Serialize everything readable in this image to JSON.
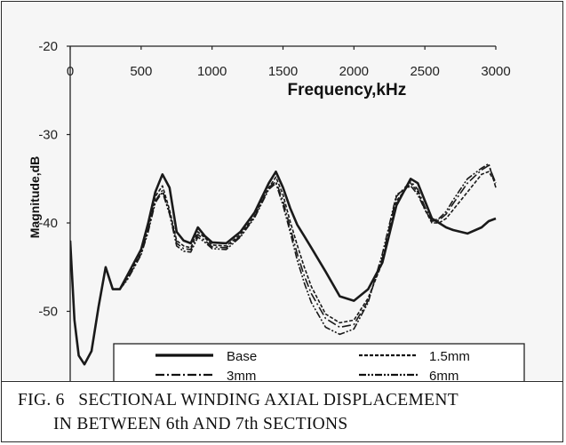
{
  "chart_data": {
    "type": "line",
    "xlabel": "Frequency,kHz",
    "ylabel": "Magnitude,dB",
    "xlim": [
      0,
      3000
    ],
    "ylim": [
      -60,
      -20
    ],
    "x_ticks": [
      "0",
      "500",
      "1000",
      "1500",
      "2000",
      "2500",
      "3000"
    ],
    "y_ticks": [
      "-20",
      "-30",
      "-40",
      "-50"
    ],
    "x_axis_position": "top",
    "grid": false,
    "legend_position": "bottom-center",
    "series": [
      {
        "name": "Base",
        "style": "solid-thick",
        "x": [
          0,
          30,
          60,
          100,
          150,
          200,
          250,
          300,
          350,
          400,
          450,
          500,
          550,
          600,
          650,
          700,
          750,
          800,
          850,
          900,
          950,
          1000,
          1100,
          1200,
          1300,
          1400,
          1450,
          1500,
          1550,
          1600,
          1650,
          1700,
          1800,
          1900,
          2000,
          2100,
          2200,
          2300,
          2400,
          2450,
          2500,
          2550,
          2600,
          2650,
          2700,
          2800,
          2900,
          2950,
          3000
        ],
        "y": [
          -42,
          -51,
          -55,
          -56,
          -54.5,
          -49.5,
          -45,
          -47.5,
          -47.5,
          -46,
          -44.5,
          -43,
          -40,
          -36.5,
          -34.5,
          -36,
          -41,
          -42,
          -42.3,
          -40.5,
          -41.5,
          -42.2,
          -42.3,
          -41,
          -38.8,
          -35.5,
          -34.2,
          -36,
          -38.3,
          -40.2,
          -41.5,
          -42.8,
          -45.5,
          -48.3,
          -48.8,
          -47.5,
          -44.5,
          -38,
          -35,
          -35.5,
          -37.5,
          -39.5,
          -40,
          -40.5,
          -40.8,
          -41.2,
          -40.5,
          -39.8,
          -39.5
        ]
      },
      {
        "name": "1.5mm",
        "style": "dashed",
        "x": [
          0,
          30,
          60,
          100,
          150,
          200,
          250,
          300,
          350,
          400,
          450,
          500,
          550,
          600,
          650,
          700,
          750,
          800,
          850,
          900,
          950,
          1000,
          1100,
          1200,
          1300,
          1400,
          1450,
          1500,
          1550,
          1600,
          1650,
          1700,
          1800,
          1900,
          2000,
          2100,
          2200,
          2300,
          2400,
          2450,
          2500,
          2550,
          2600,
          2650,
          2700,
          2800,
          2900,
          2950,
          3000
        ],
        "y": [
          -42,
          -51,
          -55,
          -56,
          -54.5,
          -49.5,
          -45,
          -47.5,
          -47.5,
          -46.3,
          -44.8,
          -43.2,
          -40.5,
          -37,
          -35.8,
          -38.5,
          -42,
          -42.6,
          -42.8,
          -41,
          -41.7,
          -42.5,
          -42.6,
          -41.3,
          -39.2,
          -36,
          -34.8,
          -36.8,
          -39.8,
          -42.5,
          -45,
          -47.2,
          -50.3,
          -51.3,
          -51,
          -48.5,
          -44.5,
          -37.5,
          -35.5,
          -36.5,
          -38.5,
          -40,
          -40,
          -39.5,
          -38.5,
          -36.5,
          -34.5,
          -34.2,
          -35.5
        ]
      },
      {
        "name": "3mm",
        "style": "long-dash-dot",
        "x": [
          0,
          30,
          60,
          100,
          150,
          200,
          250,
          300,
          350,
          400,
          450,
          500,
          550,
          600,
          650,
          700,
          750,
          800,
          850,
          900,
          950,
          1000,
          1100,
          1200,
          1300,
          1400,
          1450,
          1500,
          1550,
          1600,
          1650,
          1700,
          1800,
          1900,
          2000,
          2100,
          2200,
          2300,
          2400,
          2450,
          2500,
          2550,
          2600,
          2650,
          2700,
          2800,
          2900,
          2950,
          3000
        ],
        "y": [
          -42,
          -51,
          -55,
          -56,
          -54.5,
          -49.5,
          -45,
          -47.5,
          -47.5,
          -46.4,
          -45,
          -43.5,
          -40.8,
          -37.5,
          -36.3,
          -38.8,
          -42.3,
          -42.9,
          -43,
          -41.3,
          -42,
          -42.7,
          -42.8,
          -41.5,
          -39.3,
          -36,
          -35.3,
          -37.5,
          -40.5,
          -43.5,
          -46,
          -48,
          -50.8,
          -51.8,
          -51.5,
          -48.8,
          -44,
          -37,
          -35.3,
          -36.2,
          -38.2,
          -39.8,
          -39.7,
          -39,
          -37.8,
          -35.5,
          -34,
          -33.5,
          -35.5
        ]
      },
      {
        "name": "6mm",
        "style": "dash-dot-dot",
        "x": [
          0,
          30,
          60,
          100,
          150,
          200,
          250,
          300,
          350,
          400,
          450,
          500,
          550,
          600,
          650,
          700,
          750,
          800,
          850,
          900,
          950,
          1000,
          1100,
          1200,
          1300,
          1400,
          1450,
          1500,
          1550,
          1600,
          1650,
          1700,
          1800,
          1900,
          2000,
          2100,
          2200,
          2300,
          2400,
          2450,
          2500,
          2550,
          2600,
          2650,
          2700,
          2800,
          2900,
          2950,
          3000
        ],
        "y": [
          -42,
          -51,
          -55,
          -56,
          -54.5,
          -49.5,
          -45,
          -47.5,
          -47.5,
          -46.5,
          -45.1,
          -43.6,
          -41,
          -37.7,
          -36.5,
          -39,
          -42.6,
          -43.2,
          -43.3,
          -41.6,
          -42.2,
          -42.9,
          -43,
          -41.6,
          -39.4,
          -36.2,
          -35.5,
          -38,
          -41,
          -44.2,
          -46.8,
          -49,
          -51.8,
          -52.6,
          -52,
          -49,
          -43.5,
          -36.8,
          -35.8,
          -36.8,
          -38.5,
          -39.8,
          -39.5,
          -38.7,
          -37.4,
          -35,
          -33.8,
          -33.3,
          -36
        ]
      }
    ],
    "legend": [
      "Base",
      "1.5mm",
      "3mm",
      "6mm"
    ]
  },
  "caption": {
    "label": "FIG. 6",
    "line1": "SECTIONAL WINDING AXIAL DISPLACEMENT",
    "line2": "IN BETWEEN 6th AND 7th SECTIONS"
  },
  "colors": {
    "plot_background": "#f6f6f6",
    "lines": "#1a1a1a",
    "axis": "#222222"
  }
}
